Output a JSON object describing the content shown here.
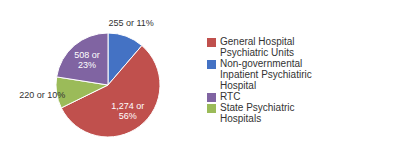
{
  "chart_data": {
    "type": "pie",
    "categories": [
      "Non-governmental\nInpatient Psychiatiric\nHospital",
      "General Hospital\nPsychiatric Units",
      "State Psychiatric\nHospitals",
      "RTC"
    ],
    "values": [
      255,
      1274,
      220,
      508
    ],
    "value_labels": [
      "255 or 11%",
      "1,274 or\n56%",
      "220 or 10%",
      "508 or\n23%"
    ],
    "colors": [
      "#4472c4",
      "#c0504d",
      "#9bbb59",
      "#8064a2"
    ],
    "data_labels": true,
    "legend": "right"
  }
}
